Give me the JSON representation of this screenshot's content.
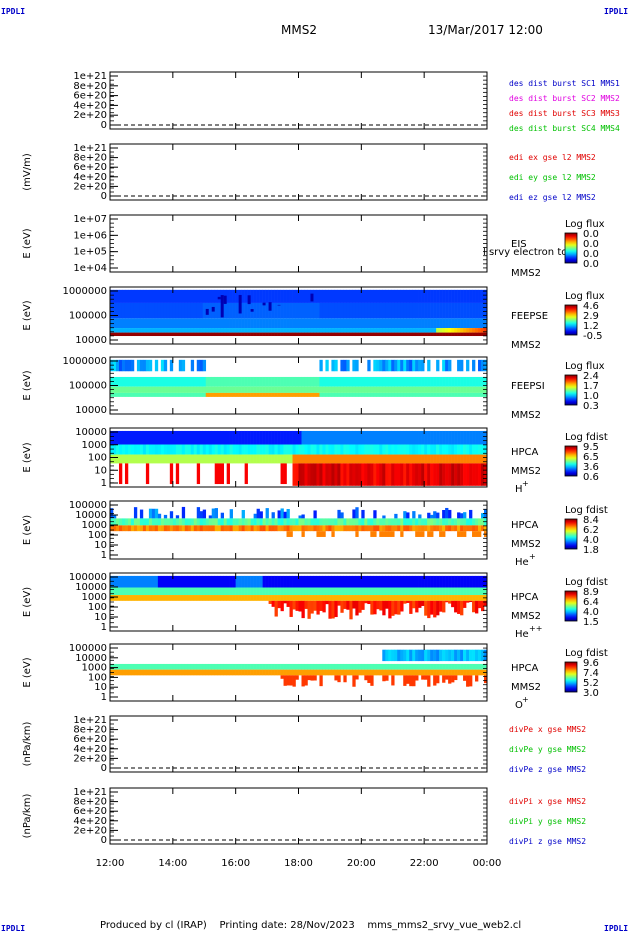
{
  "header": {
    "spacecraft": "MMS2",
    "datetime": "13/Mar/2017 12:00",
    "corner_label": "IPDLI"
  },
  "footer": {
    "text": "Produced by cl (IRAP)    Printing date: 28/Nov/2023    mms_mms2_srvy_vue_web2.cl"
  },
  "time_axis": {
    "ticks": [
      "12:00",
      "14:00",
      "16:00",
      "18:00",
      "20:00",
      "22:00",
      "00:00"
    ]
  },
  "colors": {
    "red": "#e00000",
    "green": "#00c000",
    "blue": "#0000c8",
    "magenta": "#e000e0",
    "dark_green": "#00a000",
    "dark_red": "#c80000"
  },
  "chart_data": [
    {
      "type": "line",
      "panel": "des-dist-burst",
      "ylabel": "",
      "yticks": [
        "1e+21",
        "8e+20",
        "6e+20",
        "4e+20",
        "2e+20",
        "0"
      ],
      "legend": [
        {
          "text": "des dist burst SC1 MMS1",
          "color": "#0000c8"
        },
        {
          "text": "des dist burst SC2 MMS2",
          "color": "#e000e0"
        },
        {
          "text": "des dist burst SC3 MMS3",
          "color": "#e00000"
        },
        {
          "text": "des dist burst SC4 MMS4",
          "color": "#00c000"
        }
      ],
      "series": []
    },
    {
      "type": "line",
      "panel": "edi-e-gse",
      "ylabel": "(mV/m)",
      "yticks": [
        "1e+21",
        "8e+20",
        "6e+20",
        "4e+20",
        "2e+20",
        "0"
      ],
      "legend": [
        {
          "text": "edi ex gse l2 MMS2",
          "color": "#e00000"
        },
        {
          "text": "edi ey gse l2 MMS2",
          "color": "#00c000"
        },
        {
          "text": "edi ez gse l2 MMS2",
          "color": "#0000c8"
        }
      ],
      "series": []
    },
    {
      "type": "heatmap",
      "panel": "eis",
      "ylabel": "E (eV)",
      "yticks": [
        "1e+07",
        "1e+06",
        "1e+05",
        "1e+04"
      ],
      "instrument": "EIS",
      "overlay_text": "l srvy electron to",
      "spacecraft": "MMS2",
      "colorbar_title": "Log flux",
      "colorbar_ticks": [
        "0.0",
        "0.0",
        "0.0",
        "0.0"
      ],
      "cells": []
    },
    {
      "type": "heatmap",
      "panel": "feeps-e",
      "ylabel": "E (eV)",
      "yticks": [
        "1000000",
        "100000",
        "10000"
      ],
      "instrument": "FEEPSE",
      "spacecraft": "MMS2",
      "colorbar_title": "Log flux",
      "colorbar_ticks": [
        "4.6",
        "2.9",
        "1.2",
        "-0.5"
      ]
    },
    {
      "type": "heatmap",
      "panel": "feeps-i",
      "ylabel": "E (eV)",
      "yticks": [
        "1000000",
        "100000",
        "10000"
      ],
      "instrument": "FEEPSI",
      "spacecraft": "MMS2",
      "colorbar_title": "Log flux",
      "colorbar_ticks": [
        "2.4",
        "1.7",
        "1.0",
        "0.3"
      ]
    },
    {
      "type": "heatmap",
      "panel": "hpca-h",
      "ylabel": "E (eV)",
      "yticks": [
        "10000",
        "1000",
        "100",
        "10",
        "1"
      ],
      "instrument": "HPCA",
      "spacecraft": "MMS2",
      "species": "H",
      "species_charge": "+",
      "colorbar_title": "Log fdist",
      "colorbar_ticks": [
        "9.5",
        "6.5",
        "3.6",
        "0.6"
      ]
    },
    {
      "type": "heatmap",
      "panel": "hpca-he",
      "ylabel": "E (eV)",
      "yticks": [
        "100000",
        "10000",
        "1000",
        "100",
        "10",
        "1"
      ],
      "instrument": "HPCA",
      "spacecraft": "MMS2",
      "species": "He",
      "species_charge": "+",
      "colorbar_title": "Log fdist",
      "colorbar_ticks": [
        "8.4",
        "6.2",
        "4.0",
        "1.8"
      ]
    },
    {
      "type": "heatmap",
      "panel": "hpca-he2",
      "ylabel": "E (eV)",
      "yticks": [
        "100000",
        "10000",
        "1000",
        "100",
        "10",
        "1"
      ],
      "instrument": "HPCA",
      "spacecraft": "MMS2",
      "species": "He",
      "species_charge": "++",
      "colorbar_title": "Log fdist",
      "colorbar_ticks": [
        "8.9",
        "6.4",
        "4.0",
        "1.5"
      ]
    },
    {
      "type": "heatmap",
      "panel": "hpca-o",
      "ylabel": "E (eV)",
      "yticks": [
        "100000",
        "10000",
        "1000",
        "100",
        "10",
        "1"
      ],
      "instrument": "HPCA",
      "spacecraft": "MMS2",
      "species": "O",
      "species_charge": "+",
      "colorbar_title": "Log fdist",
      "colorbar_ticks": [
        "9.6",
        "7.4",
        "5.2",
        "3.0"
      ]
    },
    {
      "type": "line",
      "panel": "divpe",
      "ylabel": "(nPa/km)",
      "yticks": [
        "1e+21",
        "8e+20",
        "6e+20",
        "4e+20",
        "2e+20",
        "0"
      ],
      "legend": [
        {
          "text": "divPe x gse MMS2",
          "color": "#e00000"
        },
        {
          "text": "divPe y gse MMS2",
          "color": "#00c000"
        },
        {
          "text": "divPe z gse MMS2",
          "color": "#0000c8"
        }
      ],
      "series": []
    },
    {
      "type": "line",
      "panel": "divpi",
      "ylabel": "(nPa/km)",
      "yticks": [
        "1e+21",
        "8e+20",
        "6e+20",
        "4e+20",
        "2e+20",
        "0"
      ],
      "legend": [
        {
          "text": "divPi x gse MMS2",
          "color": "#e00000"
        },
        {
          "text": "divPi y gse MMS2",
          "color": "#00c000"
        },
        {
          "text": "divPi z gse MMS2",
          "color": "#0000c8"
        }
      ],
      "series": []
    }
  ]
}
